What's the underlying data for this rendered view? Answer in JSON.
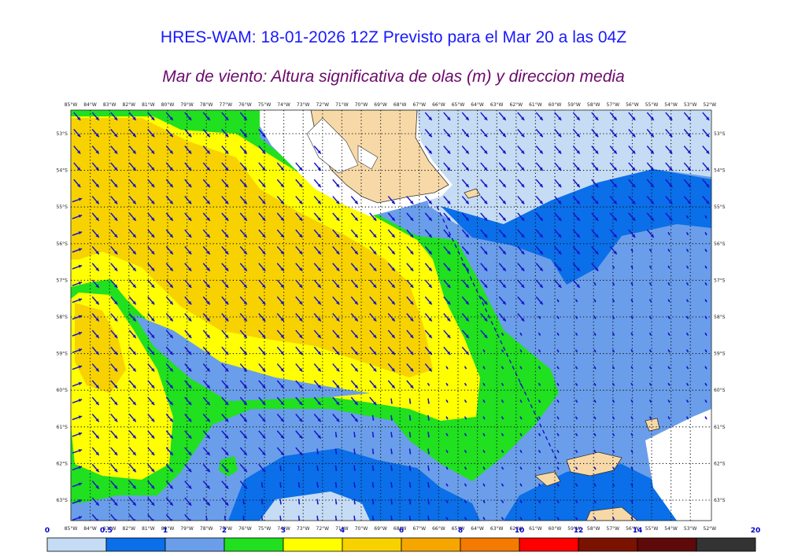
{
  "title": "HRES-WAM: 18-01-2026 12Z Previsto para el Mar 20 a las 04Z",
  "subtitle": "Mar de viento: Altura significativa de olas (m) y direccion media",
  "lon_labels": [
    "85°W",
    "84°W",
    "83°W",
    "82°W",
    "81°W",
    "80°W",
    "79°W",
    "78°W",
    "77°W",
    "76°W",
    "75°W",
    "74°W",
    "73°W",
    "72°W",
    "71°W",
    "70°W",
    "69°W",
    "68°W",
    "67°W",
    "66°W",
    "65°W",
    "64°W",
    "63°W",
    "62°W",
    "61°W",
    "60°W",
    "59°W",
    "58°W",
    "57°W",
    "56°W",
    "55°W",
    "54°W",
    "53°W",
    "52°W"
  ],
  "lat_labels": [
    "53°S",
    "54°S",
    "55°S",
    "56°S",
    "57°S",
    "58°S",
    "59°S",
    "60°S",
    "61°S",
    "62°S",
    "63°S"
  ],
  "colorbar": {
    "ticks": [
      "0",
      "0.5",
      "1",
      "2",
      "3",
      "4",
      "6",
      "8",
      "10",
      "12",
      "14",
      "20"
    ],
    "colors": [
      "#c6dcf5",
      "#0a6fe8",
      "#6a9eea",
      "#20e020",
      "#ffff00",
      "#f7d200",
      "#f5a700",
      "#f57a00",
      "#ff0000",
      "#7a1200",
      "#5e0a0a",
      "#333333"
    ]
  },
  "map_colors": {
    "sea_pale": "#c6dcf5",
    "sea_blue": "#0a6fe8",
    "sea_mid": "#6a9eea",
    "green": "#20e020",
    "yellow": "#ffff00",
    "gold": "#f7d200",
    "land": "#f7d9a8",
    "arrow": "#1515c8"
  }
}
